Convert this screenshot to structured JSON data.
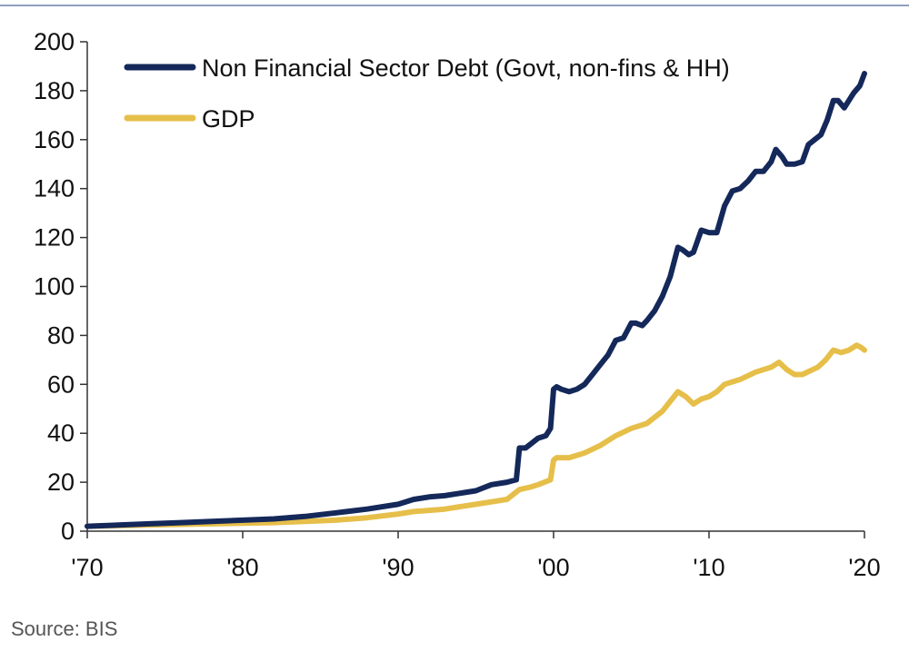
{
  "source_note": "Source: BIS",
  "chart_data": {
    "type": "line",
    "title": "",
    "xlabel": "",
    "ylabel": "",
    "xlim": [
      1970,
      2020
    ],
    "ylim": [
      0,
      200
    ],
    "grid": false,
    "legend_position": "top-left",
    "x_ticks": [
      {
        "value": 1970,
        "label": "'70"
      },
      {
        "value": 1980,
        "label": "'80"
      },
      {
        "value": 1990,
        "label": "'90"
      },
      {
        "value": 2000,
        "label": "'00"
      },
      {
        "value": 2010,
        "label": "'10"
      },
      {
        "value": 2020,
        "label": "'20"
      }
    ],
    "y_ticks": [
      0,
      20,
      40,
      60,
      80,
      100,
      120,
      140,
      160,
      180,
      200
    ],
    "series": [
      {
        "name": "Non Financial Sector Debt (Govt, non-fins & HH)",
        "color": "#14285a",
        "x": [
          1970,
          1972,
          1974,
          1976,
          1978,
          1980,
          1982,
          1984,
          1986,
          1988,
          1990,
          1991,
          1992,
          1993,
          1994,
          1995,
          1996,
          1997,
          1997.6,
          1997.8,
          1998.2,
          1998.6,
          1999,
          1999.5,
          1999.8,
          2000,
          2000.2,
          2000.5,
          2001,
          2001.5,
          2002,
          2002.5,
          2003,
          2003.5,
          2004,
          2004.5,
          2005,
          2005.3,
          2005.7,
          2006,
          2006.5,
          2007,
          2007.5,
          2008,
          2008.3,
          2008.7,
          2009,
          2009.5,
          2010,
          2010.5,
          2011,
          2011.5,
          2012,
          2012.5,
          2013,
          2013.5,
          2014,
          2014.3,
          2014.7,
          2015,
          2015.5,
          2016,
          2016.4,
          2016.8,
          2017.2,
          2017.6,
          2018,
          2018.3,
          2018.7,
          2019,
          2019.3,
          2019.7,
          2020
        ],
        "values": [
          2,
          2.5,
          3,
          3.5,
          4,
          4.5,
          5,
          6,
          7.5,
          9,
          11,
          13,
          14,
          14.5,
          15.5,
          16.5,
          19,
          20,
          21,
          34,
          34,
          36,
          38,
          39,
          42,
          58,
          59,
          58,
          57,
          58,
          60,
          64,
          68,
          72,
          78,
          79,
          85,
          85,
          84,
          86,
          90,
          96,
          104,
          116,
          115,
          113,
          114,
          123,
          122,
          122,
          133,
          139,
          140,
          143,
          147,
          147,
          151,
          156,
          153,
          150,
          150,
          151,
          158,
          160,
          162,
          168,
          176,
          176,
          173,
          176,
          179,
          182,
          187
        ]
      },
      {
        "name": "GDP",
        "color": "#e6bf4a",
        "x": [
          1970,
          1974,
          1978,
          1982,
          1986,
          1988,
          1990,
          1991,
          1992,
          1993,
          1994,
          1995,
          1996,
          1997,
          1997.8,
          1998.5,
          1999,
          1999.8,
          2000,
          2000.2,
          2001,
          2001.5,
          2002,
          2003,
          2004,
          2005,
          2006,
          2007,
          2008,
          2008.5,
          2009,
          2009.5,
          2010,
          2010.5,
          2011,
          2012,
          2013,
          2014,
          2014.5,
          2015,
          2015.5,
          2016,
          2017,
          2017.5,
          2018,
          2018.5,
          2019,
          2019.5,
          2019.8,
          2020
        ],
        "values": [
          2,
          2.5,
          3,
          3.5,
          4.5,
          5.5,
          7,
          8,
          8.5,
          9,
          10,
          11,
          12,
          13,
          17,
          18,
          19,
          21,
          29,
          30,
          30,
          31,
          32,
          35,
          39,
          42,
          44,
          49,
          57,
          55,
          52,
          54,
          55,
          57,
          60,
          62,
          65,
          67,
          69,
          66,
          64,
          64,
          67,
          70,
          74,
          73,
          74,
          76,
          75,
          74
        ]
      }
    ]
  }
}
